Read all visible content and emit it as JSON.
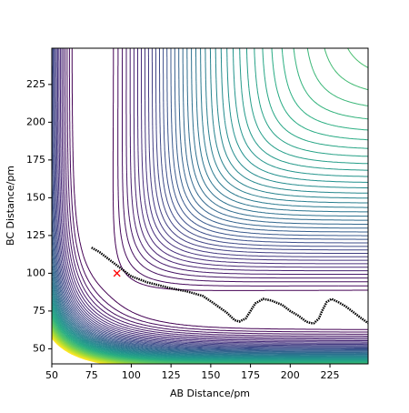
{
  "chart_data": {
    "type": "line",
    "xlabel": "AB Distance/pm",
    "ylabel": "BC Distance/pm",
    "xlim": [
      50,
      249
    ],
    "ylim": [
      40,
      249
    ],
    "xticks": [
      50,
      75,
      100,
      125,
      150,
      175,
      200,
      225
    ],
    "yticks": [
      50,
      75,
      100,
      125,
      150,
      175,
      200,
      225
    ],
    "series": [
      {
        "color": "#000000",
        "x": [
          75,
          80,
          85,
          90,
          95,
          100,
          110,
          125,
          135,
          145,
          152,
          160,
          165,
          168,
          172,
          175,
          178,
          183,
          188,
          195,
          200,
          205,
          210,
          213,
          215,
          218,
          220,
          223,
          226,
          230,
          235,
          240,
          245,
          249
        ],
        "values": [
          117,
          114,
          110,
          106,
          102,
          98,
          94,
          90,
          88,
          85,
          80,
          74,
          69,
          68,
          70,
          75,
          80,
          83,
          82,
          79,
          75,
          72,
          68,
          67,
          67,
          70,
          75,
          81,
          83,
          81,
          78,
          74,
          70,
          67
        ]
      }
    ],
    "marker": {
      "x": 91,
      "y": 100,
      "color": "#ff0000"
    }
  }
}
